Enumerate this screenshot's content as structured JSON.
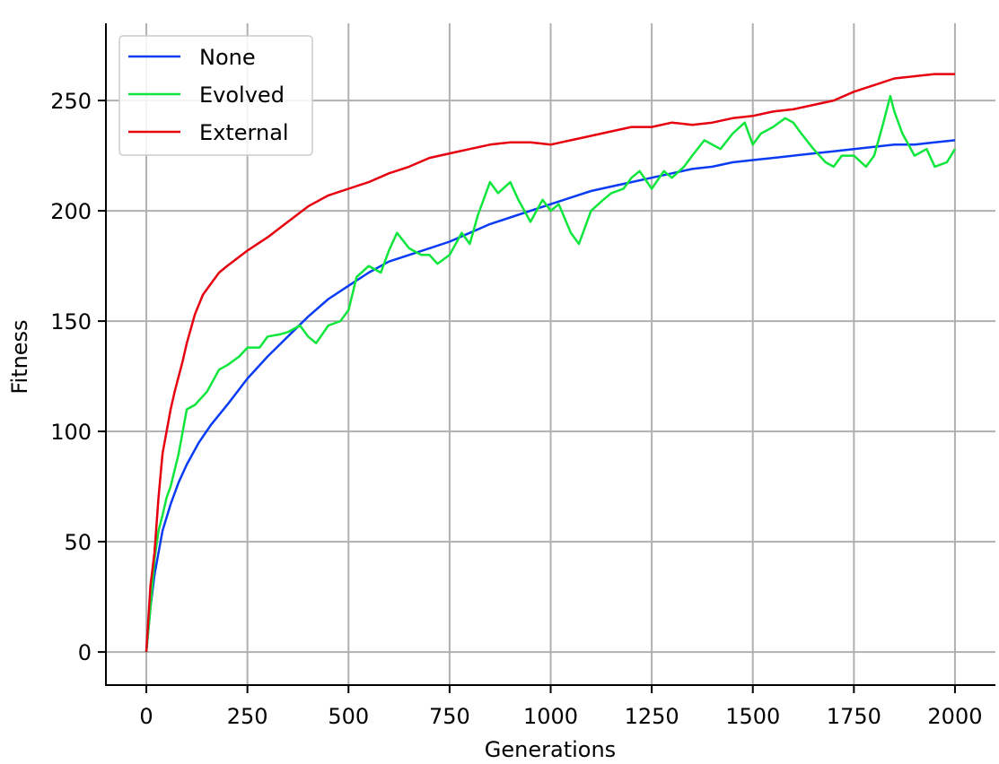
{
  "chart_data": {
    "type": "line",
    "title": "",
    "xlabel": "Generations",
    "ylabel": "Fitness",
    "xlim": [
      -100,
      2100
    ],
    "ylim": [
      -15,
      285
    ],
    "x_ticks": [
      0,
      250,
      500,
      750,
      1000,
      1250,
      1500,
      1750,
      2000
    ],
    "y_ticks": [
      0,
      50,
      100,
      150,
      200,
      250
    ],
    "grid": true,
    "legend_position": "top-left",
    "series": [
      {
        "name": "None",
        "color": "#0a3cf5",
        "x": [
          0,
          10,
          20,
          40,
          60,
          80,
          100,
          130,
          160,
          200,
          250,
          300,
          350,
          400,
          450,
          500,
          550,
          600,
          650,
          700,
          750,
          800,
          850,
          900,
          950,
          1000,
          1050,
          1100,
          1150,
          1200,
          1250,
          1300,
          1350,
          1400,
          1450,
          1500,
          1550,
          1600,
          1650,
          1700,
          1750,
          1800,
          1850,
          1900,
          1950,
          2000
        ],
        "y": [
          0,
          20,
          35,
          55,
          67,
          77,
          85,
          95,
          103,
          112,
          124,
          134,
          143,
          152,
          160,
          166,
          172,
          177,
          180,
          183,
          186,
          190,
          194,
          197,
          200,
          203,
          206,
          209,
          211,
          213,
          215,
          217,
          219,
          220,
          222,
          223,
          224,
          225,
          226,
          227,
          228,
          229,
          230,
          230,
          231,
          232
        ]
      },
      {
        "name": "Evolved",
        "color": "#0ee63c",
        "x": [
          0,
          10,
          20,
          30,
          40,
          50,
          60,
          80,
          100,
          120,
          150,
          180,
          200,
          230,
          250,
          280,
          300,
          330,
          350,
          380,
          400,
          420,
          450,
          480,
          500,
          520,
          550,
          580,
          600,
          620,
          650,
          680,
          700,
          720,
          750,
          780,
          800,
          820,
          850,
          870,
          900,
          920,
          950,
          980,
          1000,
          1020,
          1050,
          1070,
          1100,
          1130,
          1150,
          1180,
          1200,
          1220,
          1250,
          1280,
          1300,
          1330,
          1350,
          1380,
          1400,
          1420,
          1450,
          1480,
          1500,
          1520,
          1550,
          1580,
          1600,
          1620,
          1650,
          1680,
          1700,
          1720,
          1750,
          1780,
          1800,
          1820,
          1840,
          1850,
          1870,
          1900,
          1930,
          1950,
          1980,
          2000
        ],
        "y": [
          0,
          20,
          42,
          55,
          62,
          70,
          75,
          90,
          110,
          112,
          118,
          128,
          130,
          134,
          138,
          138,
          143,
          144,
          145,
          148,
          143,
          140,
          148,
          150,
          155,
          170,
          175,
          172,
          182,
          190,
          183,
          180,
          180,
          176,
          180,
          190,
          185,
          198,
          213,
          208,
          213,
          205,
          195,
          205,
          200,
          203,
          190,
          185,
          200,
          205,
          208,
          210,
          215,
          218,
          210,
          218,
          215,
          220,
          225,
          232,
          230,
          228,
          235,
          240,
          230,
          235,
          238,
          242,
          240,
          235,
          228,
          222,
          220,
          225,
          225,
          220,
          225,
          238,
          252,
          245,
          235,
          225,
          228,
          220,
          222,
          228
        ]
      },
      {
        "name": "External",
        "color": "#e6000f",
        "x": [
          0,
          10,
          20,
          30,
          40,
          50,
          60,
          70,
          80,
          90,
          100,
          120,
          140,
          160,
          180,
          200,
          250,
          300,
          350,
          400,
          450,
          500,
          550,
          600,
          650,
          700,
          750,
          800,
          850,
          900,
          950,
          1000,
          1050,
          1100,
          1150,
          1200,
          1250,
          1300,
          1350,
          1400,
          1450,
          1500,
          1550,
          1600,
          1650,
          1700,
          1750,
          1800,
          1850,
          1900,
          1950,
          2000
        ],
        "y": [
          0,
          30,
          45,
          70,
          90,
          100,
          110,
          118,
          125,
          132,
          140,
          153,
          162,
          167,
          172,
          175,
          182,
          188,
          195,
          202,
          207,
          210,
          213,
          217,
          220,
          224,
          226,
          228,
          230,
          231,
          231,
          230,
          232,
          234,
          236,
          238,
          238,
          240,
          239,
          240,
          242,
          243,
          245,
          246,
          248,
          250,
          254,
          257,
          260,
          261,
          262,
          262
        ]
      }
    ]
  }
}
